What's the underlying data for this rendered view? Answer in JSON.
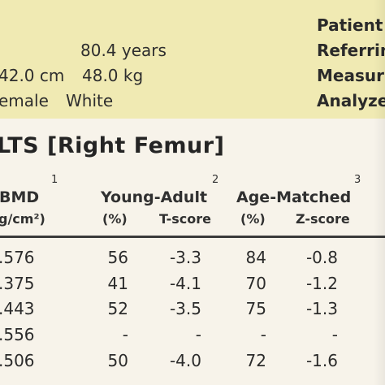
{
  "header": {
    "age": "80.4 years",
    "height": "42.0 cm",
    "weight": "48.0 kg",
    "sex": "emale",
    "ethnicity": "White",
    "labels": {
      "patient": "Patient",
      "referring": "Referrin",
      "measured": "Measur",
      "analyzed": "Analyze"
    }
  },
  "results": {
    "title": "LTS [Right Femur]"
  },
  "table": {
    "col_bmd": "BMD",
    "col_bmd_sup": "1",
    "col_bmd_unit": "g/cm²)",
    "col_young": "Young-Adult",
    "col_young_sup": "2",
    "col_age": "Age-Matched",
    "col_age_sup": "3",
    "sub_pct_young": "(%)",
    "sub_tscore": "T-score",
    "sub_pct_age": "(%)",
    "sub_zscore": "Z-score",
    "rows": [
      {
        "bmd": ".576",
        "ya_pct": "56",
        "t": "-3.3",
        "am_pct": "84",
        "z": "-0.8"
      },
      {
        "bmd": ".375",
        "ya_pct": "41",
        "t": "-4.1",
        "am_pct": "70",
        "z": "-1.2"
      },
      {
        "bmd": ".443",
        "ya_pct": "52",
        "t": "-3.5",
        "am_pct": "75",
        "z": "-1.3"
      },
      {
        "bmd": ".556",
        "ya_pct": "-",
        "t": "-",
        "am_pct": "-",
        "z": "-"
      },
      {
        "bmd": ".506",
        "ya_pct": "50",
        "t": "-4.0",
        "am_pct": "72",
        "z": "-1.6"
      }
    ]
  }
}
